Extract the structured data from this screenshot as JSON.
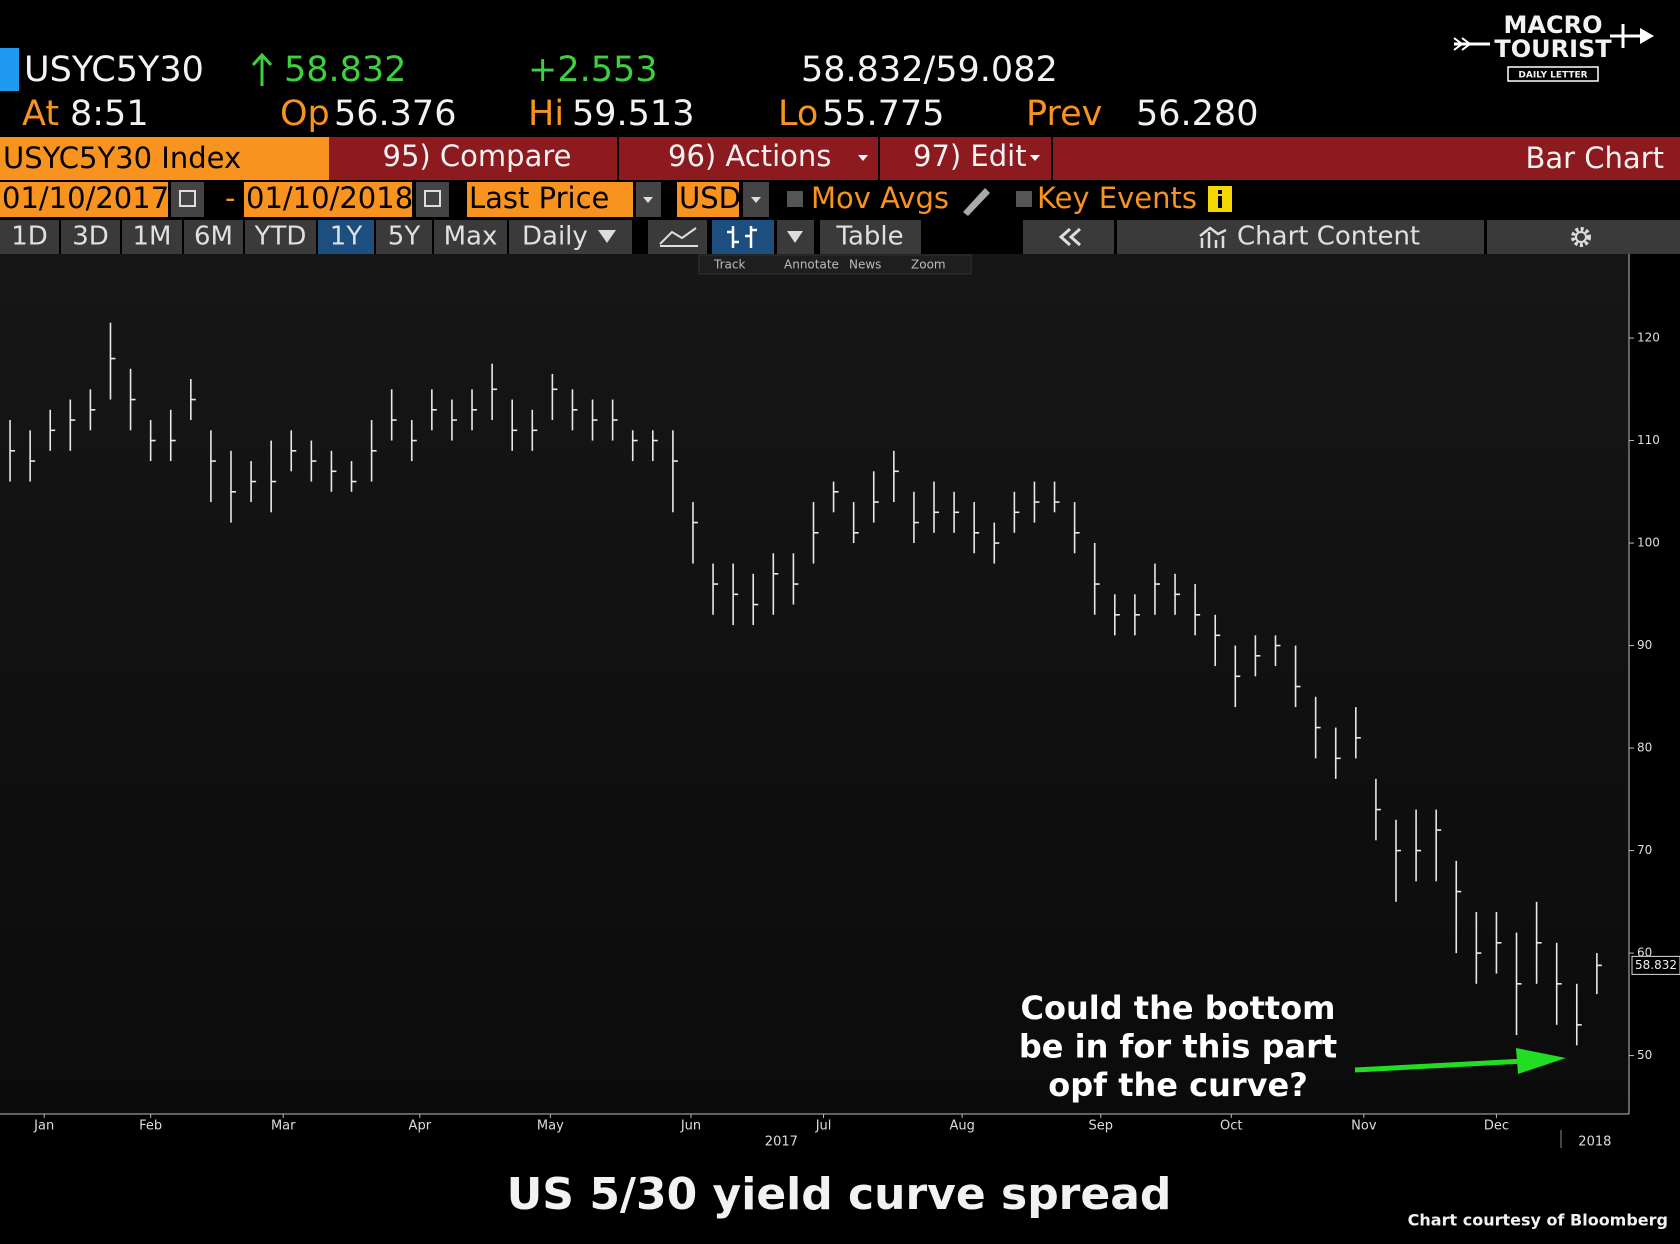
{
  "logo": {
    "line1": "MACRO",
    "line2": "TOURIST",
    "tagline": "DAILY LETTER"
  },
  "header": {
    "ticker": "USYC5Y30",
    "last": "58.832",
    "change": "+2.553",
    "quote": "58.832/59.082",
    "time_label": "At",
    "time": "8:51",
    "open_label": "Op",
    "open": "56.376",
    "high_label": "Hi",
    "high": "59.513",
    "low_label": "Lo",
    "low": "55.775",
    "prev_label": "Prev",
    "prev": "56.280"
  },
  "menu": {
    "security": "USYC5Y30 Index",
    "compare": "95) Compare",
    "actions": "96) Actions",
    "edit": "97) Edit",
    "view": "Bar Chart"
  },
  "controls": {
    "start_date": "01/10/2017",
    "date_separator": "-",
    "end_date": "01/10/2018",
    "field": "Last Price",
    "currency": "USD",
    "mov_avgs": "Mov Avgs",
    "key_events": "Key Events"
  },
  "toolbar": {
    "ranges": [
      "1D",
      "3D",
      "1M",
      "6M",
      "YTD",
      "1Y",
      "5Y",
      "Max"
    ],
    "selected_range_index": 5,
    "frequency": "Daily",
    "table": "Table",
    "chart_content": "Chart Content",
    "tools": [
      "Track",
      "Annotate",
      "News",
      "Zoom"
    ]
  },
  "chart_data": {
    "type": "ohlc",
    "high": [
      112,
      111,
      113,
      114,
      115,
      121.5,
      117,
      112,
      113,
      116,
      111,
      109,
      108,
      110,
      111,
      110,
      109,
      108,
      112,
      115,
      112,
      115,
      114,
      115,
      117.5,
      114,
      113,
      116.5,
      115,
      114,
      114,
      111,
      111,
      111,
      104,
      98,
      98,
      97,
      99,
      99,
      104,
      106,
      104,
      107,
      109,
      105,
      106,
      105,
      104,
      102,
      105,
      106,
      106,
      104,
      100,
      95,
      95,
      98,
      97,
      96,
      93,
      90,
      91,
      91,
      90,
      85,
      82,
      84,
      77,
      73,
      74,
      74,
      69,
      64,
      64,
      62,
      65,
      61,
      57,
      60
    ],
    "low": [
      106,
      106,
      109,
      109,
      111,
      114,
      111,
      108,
      108,
      112,
      104,
      102,
      104,
      103,
      107,
      106,
      105,
      105,
      106,
      110,
      108,
      111,
      110,
      111,
      112,
      109,
      109,
      112,
      111,
      110,
      110,
      108,
      108,
      103,
      98,
      93,
      92,
      92,
      93,
      94,
      98,
      103,
      100,
      102,
      104,
      100,
      101,
      101,
      99,
      98,
      101,
      102,
      103,
      99,
      93,
      91,
      91,
      93,
      93,
      91,
      88,
      84,
      87,
      88,
      84,
      79,
      77,
      79,
      71,
      65,
      67,
      67,
      60,
      57,
      58,
      52,
      57,
      53,
      51,
      56
    ],
    "close": [
      109,
      108,
      111,
      112,
      113,
      118,
      114,
      110,
      110,
      114,
      108,
      105,
      106,
      106,
      109,
      108,
      107,
      106,
      109,
      112,
      110,
      113,
      112,
      113,
      115,
      111,
      111,
      115,
      113,
      112,
      112,
      110,
      110,
      108,
      102,
      96,
      95,
      94,
      97,
      96,
      101,
      105,
      101,
      104,
      107,
      102,
      103,
      103,
      101,
      100,
      103,
      104,
      104,
      101,
      96,
      93,
      93,
      96,
      95,
      93,
      91,
      87,
      89,
      90,
      86,
      82,
      79,
      81,
      74,
      70,
      70,
      72,
      66,
      60,
      61,
      57,
      61,
      57,
      53,
      58.8
    ],
    "color": "#e8e8e8",
    "xlim": [
      -0.5,
      80.6
    ],
    "xticks": [
      {
        "value": 1.7,
        "label": "Jan"
      },
      {
        "value": 7,
        "label": "Feb"
      },
      {
        "value": 13.6,
        "label": "Mar"
      },
      {
        "value": 20.4,
        "label": "Apr"
      },
      {
        "value": 26.9,
        "label": "May"
      },
      {
        "value": 33.9,
        "label": "Jun"
      },
      {
        "value": 40.5,
        "label": "Jul"
      },
      {
        "value": 47.4,
        "label": "Aug"
      },
      {
        "value": 54.3,
        "label": "Sep"
      },
      {
        "value": 60.8,
        "label": "Oct"
      },
      {
        "value": 67.4,
        "label": "Nov"
      },
      {
        "value": 74,
        "label": "Dec"
      }
    ],
    "year_ticks": [
      {
        "value": 38.4,
        "label": "2017"
      },
      {
        "value": 78.9,
        "label": "2018"
      }
    ],
    "ylim": [
      44.3,
      128.2
    ],
    "yticks": [
      50,
      60,
      70,
      80,
      90,
      100,
      110,
      120
    ],
    "annotation": [
      "Could the bottom",
      "be in for this part",
      "opf the curve?"
    ]
  },
  "caption": "US 5/30 yield curve spread",
  "credit": "Chart courtesy of Bloomberg"
}
